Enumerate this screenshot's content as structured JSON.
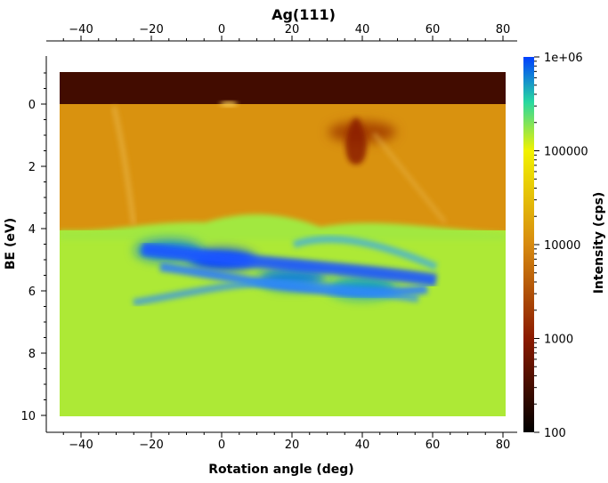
{
  "chart_data": {
    "type": "heatmap",
    "title": "Ag(111)",
    "xlabel": "Rotation angle (deg)",
    "ylabel": "BE (eV)",
    "colorbar_label": "Intensity (cps)",
    "colorbar_scale": "log",
    "colorbar_range": [
      100,
      1000000
    ],
    "colorbar_ticks": [
      {
        "value": 100,
        "label": "100"
      },
      {
        "value": 1000,
        "label": "1000"
      },
      {
        "value": 10000,
        "label": "10000"
      },
      {
        "value": 100000,
        "label": "100000"
      },
      {
        "value": 1000000,
        "label": "1e+06"
      }
    ],
    "xlim": [
      -50,
      84
    ],
    "ylim": [
      10.5,
      -1.5
    ],
    "data_extent": {
      "x": [
        -46,
        81
      ],
      "y": [
        -1,
        10
      ]
    },
    "x_ticks": [
      {
        "value": -40,
        "label": "−40"
      },
      {
        "value": -20,
        "label": "−20"
      },
      {
        "value": 0,
        "label": "0"
      },
      {
        "value": 20,
        "label": "20"
      },
      {
        "value": 40,
        "label": "40"
      },
      {
        "value": 60,
        "label": "60"
      },
      {
        "value": 80,
        "label": "80"
      }
    ],
    "y_ticks": [
      {
        "value": 0,
        "label": "0"
      },
      {
        "value": 2,
        "label": "2"
      },
      {
        "value": 4,
        "label": "4"
      },
      {
        "value": 6,
        "label": "6"
      },
      {
        "value": 8,
        "label": "8"
      },
      {
        "value": 10,
        "label": "10"
      }
    ],
    "regions": [
      {
        "be_range": [
          -1,
          0
        ],
        "intensity": 300
      },
      {
        "be_range": [
          0,
          4
        ],
        "intensity": 12000
      },
      {
        "be_range": [
          4,
          10
        ],
        "intensity": 150000
      }
    ],
    "features": [
      {
        "x": 0,
        "be": 5.0,
        "intensity": 1000000
      },
      {
        "x": 20,
        "be": 5.6,
        "intensity": 600000
      },
      {
        "x": 40,
        "be": 5.9,
        "intensity": 500000
      },
      {
        "x": -15,
        "be": 4.7,
        "intensity": 600000
      },
      {
        "x": 40,
        "be": 0.9,
        "intensity": 2500
      }
    ],
    "colormap": [
      "#000000",
      "#8b1a00",
      "#d78a10",
      "#f2f200",
      "#27d8a0",
      "#0040ff"
    ],
    "grid": false
  }
}
